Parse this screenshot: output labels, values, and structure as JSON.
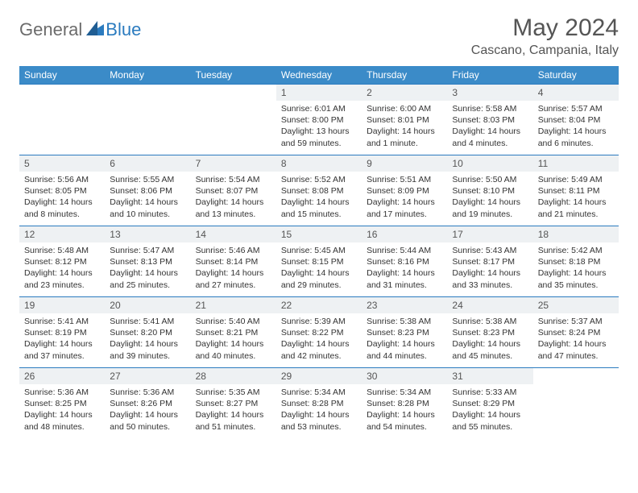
{
  "brand": {
    "part1": "General",
    "part2": "Blue"
  },
  "title": "May 2024",
  "location": "Cascano, Campania, Italy",
  "colors": {
    "header_bg": "#3b8bc8",
    "header_text": "#ffffff",
    "border": "#2b7bbf",
    "daynum_bg": "#eef1f3",
    "text": "#333333",
    "title_text": "#555555",
    "logo_gray": "#6b6b6b",
    "logo_blue": "#2b7bbf",
    "background": "#ffffff"
  },
  "calendar": {
    "type": "table",
    "day_headers": [
      "Sunday",
      "Monday",
      "Tuesday",
      "Wednesday",
      "Thursday",
      "Friday",
      "Saturday"
    ],
    "header_fontsize": 12,
    "daynum_fontsize": 12,
    "body_fontsize": 10.5,
    "weeks": [
      [
        null,
        null,
        null,
        {
          "n": "1",
          "sr": "Sunrise: 6:01 AM",
          "ss": "Sunset: 8:00 PM",
          "dl": "Daylight: 13 hours and 59 minutes."
        },
        {
          "n": "2",
          "sr": "Sunrise: 6:00 AM",
          "ss": "Sunset: 8:01 PM",
          "dl": "Daylight: 14 hours and 1 minute."
        },
        {
          "n": "3",
          "sr": "Sunrise: 5:58 AM",
          "ss": "Sunset: 8:03 PM",
          "dl": "Daylight: 14 hours and 4 minutes."
        },
        {
          "n": "4",
          "sr": "Sunrise: 5:57 AM",
          "ss": "Sunset: 8:04 PM",
          "dl": "Daylight: 14 hours and 6 minutes."
        }
      ],
      [
        {
          "n": "5",
          "sr": "Sunrise: 5:56 AM",
          "ss": "Sunset: 8:05 PM",
          "dl": "Daylight: 14 hours and 8 minutes."
        },
        {
          "n": "6",
          "sr": "Sunrise: 5:55 AM",
          "ss": "Sunset: 8:06 PM",
          "dl": "Daylight: 14 hours and 10 minutes."
        },
        {
          "n": "7",
          "sr": "Sunrise: 5:54 AM",
          "ss": "Sunset: 8:07 PM",
          "dl": "Daylight: 14 hours and 13 minutes."
        },
        {
          "n": "8",
          "sr": "Sunrise: 5:52 AM",
          "ss": "Sunset: 8:08 PM",
          "dl": "Daylight: 14 hours and 15 minutes."
        },
        {
          "n": "9",
          "sr": "Sunrise: 5:51 AM",
          "ss": "Sunset: 8:09 PM",
          "dl": "Daylight: 14 hours and 17 minutes."
        },
        {
          "n": "10",
          "sr": "Sunrise: 5:50 AM",
          "ss": "Sunset: 8:10 PM",
          "dl": "Daylight: 14 hours and 19 minutes."
        },
        {
          "n": "11",
          "sr": "Sunrise: 5:49 AM",
          "ss": "Sunset: 8:11 PM",
          "dl": "Daylight: 14 hours and 21 minutes."
        }
      ],
      [
        {
          "n": "12",
          "sr": "Sunrise: 5:48 AM",
          "ss": "Sunset: 8:12 PM",
          "dl": "Daylight: 14 hours and 23 minutes."
        },
        {
          "n": "13",
          "sr": "Sunrise: 5:47 AM",
          "ss": "Sunset: 8:13 PM",
          "dl": "Daylight: 14 hours and 25 minutes."
        },
        {
          "n": "14",
          "sr": "Sunrise: 5:46 AM",
          "ss": "Sunset: 8:14 PM",
          "dl": "Daylight: 14 hours and 27 minutes."
        },
        {
          "n": "15",
          "sr": "Sunrise: 5:45 AM",
          "ss": "Sunset: 8:15 PM",
          "dl": "Daylight: 14 hours and 29 minutes."
        },
        {
          "n": "16",
          "sr": "Sunrise: 5:44 AM",
          "ss": "Sunset: 8:16 PM",
          "dl": "Daylight: 14 hours and 31 minutes."
        },
        {
          "n": "17",
          "sr": "Sunrise: 5:43 AM",
          "ss": "Sunset: 8:17 PM",
          "dl": "Daylight: 14 hours and 33 minutes."
        },
        {
          "n": "18",
          "sr": "Sunrise: 5:42 AM",
          "ss": "Sunset: 8:18 PM",
          "dl": "Daylight: 14 hours and 35 minutes."
        }
      ],
      [
        {
          "n": "19",
          "sr": "Sunrise: 5:41 AM",
          "ss": "Sunset: 8:19 PM",
          "dl": "Daylight: 14 hours and 37 minutes."
        },
        {
          "n": "20",
          "sr": "Sunrise: 5:41 AM",
          "ss": "Sunset: 8:20 PM",
          "dl": "Daylight: 14 hours and 39 minutes."
        },
        {
          "n": "21",
          "sr": "Sunrise: 5:40 AM",
          "ss": "Sunset: 8:21 PM",
          "dl": "Daylight: 14 hours and 40 minutes."
        },
        {
          "n": "22",
          "sr": "Sunrise: 5:39 AM",
          "ss": "Sunset: 8:22 PM",
          "dl": "Daylight: 14 hours and 42 minutes."
        },
        {
          "n": "23",
          "sr": "Sunrise: 5:38 AM",
          "ss": "Sunset: 8:23 PM",
          "dl": "Daylight: 14 hours and 44 minutes."
        },
        {
          "n": "24",
          "sr": "Sunrise: 5:38 AM",
          "ss": "Sunset: 8:23 PM",
          "dl": "Daylight: 14 hours and 45 minutes."
        },
        {
          "n": "25",
          "sr": "Sunrise: 5:37 AM",
          "ss": "Sunset: 8:24 PM",
          "dl": "Daylight: 14 hours and 47 minutes."
        }
      ],
      [
        {
          "n": "26",
          "sr": "Sunrise: 5:36 AM",
          "ss": "Sunset: 8:25 PM",
          "dl": "Daylight: 14 hours and 48 minutes."
        },
        {
          "n": "27",
          "sr": "Sunrise: 5:36 AM",
          "ss": "Sunset: 8:26 PM",
          "dl": "Daylight: 14 hours and 50 minutes."
        },
        {
          "n": "28",
          "sr": "Sunrise: 5:35 AM",
          "ss": "Sunset: 8:27 PM",
          "dl": "Daylight: 14 hours and 51 minutes."
        },
        {
          "n": "29",
          "sr": "Sunrise: 5:34 AM",
          "ss": "Sunset: 8:28 PM",
          "dl": "Daylight: 14 hours and 53 minutes."
        },
        {
          "n": "30",
          "sr": "Sunrise: 5:34 AM",
          "ss": "Sunset: 8:28 PM",
          "dl": "Daylight: 14 hours and 54 minutes."
        },
        {
          "n": "31",
          "sr": "Sunrise: 5:33 AM",
          "ss": "Sunset: 8:29 PM",
          "dl": "Daylight: 14 hours and 55 minutes."
        },
        null
      ]
    ]
  }
}
